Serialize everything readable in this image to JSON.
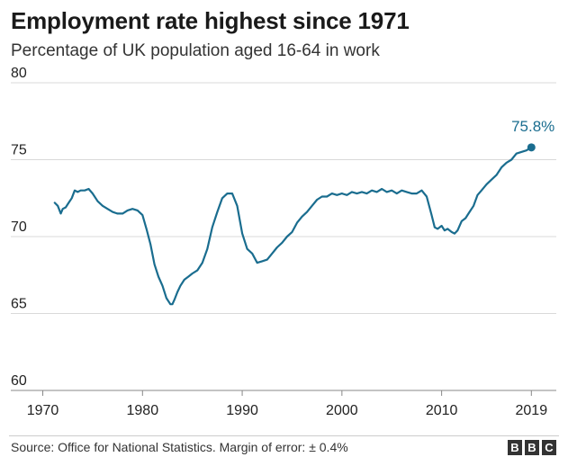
{
  "header": {
    "title": "Employment rate highest since 1971",
    "subtitle": "Percentage of UK population aged 16-64 in work"
  },
  "footer": {
    "source": "Source: Office for National Statistics. Margin of error: ± 0.4%",
    "logo": [
      "B",
      "B",
      "C"
    ]
  },
  "colors": {
    "line": "#1a6d8f",
    "grid": "#d9d9d9",
    "text": "#222222"
  },
  "chart_data": {
    "type": "line",
    "title": "Employment rate highest since 1971",
    "subtitle": "Percentage of UK population aged 16-64 in work",
    "xlabel": "",
    "ylabel": "",
    "xlim": [
      1969.5,
      2021.5
    ],
    "ylim": [
      60,
      80
    ],
    "yticks": [
      60,
      65,
      70,
      75,
      80
    ],
    "xticks": [
      1970,
      1980,
      1990,
      2000,
      2010,
      2019
    ],
    "grid": "horizontal",
    "series": [
      {
        "name": "Employment rate",
        "x": [
          1971.2,
          1971.5,
          1971.8,
          1972.0,
          1972.3,
          1972.6,
          1972.9,
          1973.2,
          1973.5,
          1973.8,
          1974.2,
          1974.6,
          1975.0,
          1975.5,
          1976.0,
          1976.5,
          1977.0,
          1977.5,
          1978.0,
          1978.5,
          1979.0,
          1979.5,
          1980.0,
          1980.4,
          1980.8,
          1981.2,
          1981.6,
          1982.0,
          1982.4,
          1982.8,
          1983.0,
          1983.2,
          1983.5,
          1983.8,
          1984.2,
          1984.6,
          1985.0,
          1985.5,
          1986.0,
          1986.5,
          1987.0,
          1987.5,
          1988.0,
          1988.5,
          1989.0,
          1989.5,
          1990.0,
          1990.5,
          1991.0,
          1991.5,
          1992.0,
          1992.5,
          1993.0,
          1993.5,
          1994.0,
          1994.5,
          1995.0,
          1995.5,
          1996.0,
          1996.5,
          1997.0,
          1997.5,
          1998.0,
          1998.5,
          1999.0,
          1999.5,
          2000.0,
          2000.5,
          2001.0,
          2001.5,
          2002.0,
          2002.5,
          2003.0,
          2003.5,
          2004.0,
          2004.5,
          2005.0,
          2005.5,
          2006.0,
          2006.5,
          2007.0,
          2007.5,
          2008.0,
          2008.5,
          2009.0,
          2009.3,
          2009.6,
          2010.0,
          2010.3,
          2010.6,
          2011.0,
          2011.3,
          2011.6,
          2012.0,
          2012.4,
          2012.8,
          2013.2,
          2013.6,
          2014.0,
          2014.5,
          2015.0,
          2015.5,
          2016.0,
          2016.5,
          2017.0,
          2017.5,
          2018.0,
          2018.5,
          2019.0
        ],
        "values": [
          72.2,
          72.0,
          71.5,
          71.8,
          71.9,
          72.2,
          72.5,
          73.0,
          72.9,
          73.0,
          73.0,
          73.1,
          72.8,
          72.3,
          72.0,
          71.8,
          71.6,
          71.5,
          71.5,
          71.7,
          71.8,
          71.7,
          71.4,
          70.5,
          69.5,
          68.2,
          67.4,
          66.8,
          66.0,
          65.6,
          65.6,
          65.9,
          66.4,
          66.8,
          67.2,
          67.4,
          67.6,
          67.8,
          68.3,
          69.2,
          70.6,
          71.6,
          72.5,
          72.8,
          72.8,
          72.0,
          70.2,
          69.2,
          68.9,
          68.3,
          68.4,
          68.5,
          68.9,
          69.3,
          69.6,
          70.0,
          70.3,
          70.9,
          71.3,
          71.6,
          72.0,
          72.4,
          72.6,
          72.6,
          72.8,
          72.7,
          72.8,
          72.7,
          72.9,
          72.8,
          72.9,
          72.8,
          73.0,
          72.9,
          73.1,
          72.9,
          73.0,
          72.8,
          73.0,
          72.9,
          72.8,
          72.8,
          73.0,
          72.6,
          71.4,
          70.6,
          70.5,
          70.7,
          70.4,
          70.5,
          70.3,
          70.2,
          70.4,
          71.0,
          71.2,
          71.6,
          72.0,
          72.7,
          73.0,
          73.4,
          73.7,
          74.0,
          74.5,
          74.8,
          75.0,
          75.4,
          75.5,
          75.6,
          75.8
        ]
      }
    ],
    "annotations": [
      {
        "x": 2019.0,
        "y": 75.8,
        "label": "75.8%"
      }
    ]
  }
}
